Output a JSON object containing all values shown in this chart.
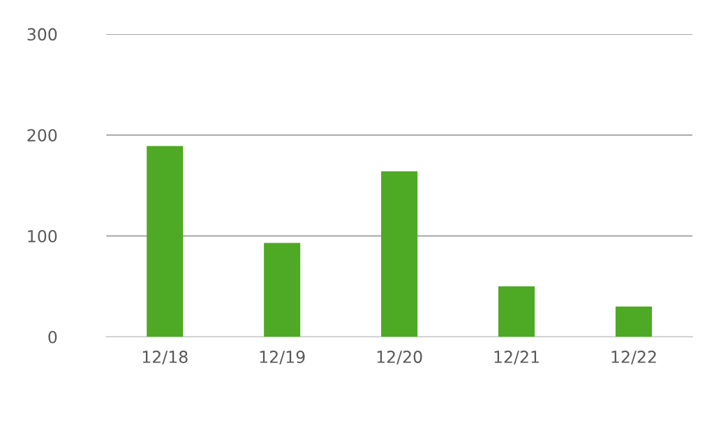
{
  "chart_data": {
    "type": "bar",
    "categories": [
      "12/18",
      "12/19",
      "12/20",
      "12/21",
      "12/22"
    ],
    "values": [
      189,
      93,
      164,
      50,
      30
    ],
    "color": "#4ea924",
    "ylim": [
      0,
      300
    ],
    "yticks": [
      0,
      100,
      200,
      300
    ],
    "grid": "y",
    "legend": false
  }
}
